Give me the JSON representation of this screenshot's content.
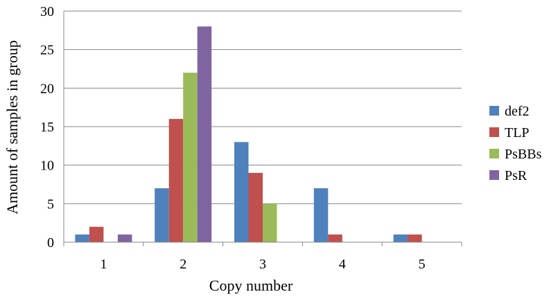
{
  "chart_data": {
    "type": "bar",
    "title": "",
    "xlabel": "Copy number",
    "ylabel": "Amount of samples in group",
    "categories": [
      "1",
      "2",
      "3",
      "4",
      "5"
    ],
    "ylim": [
      0,
      30
    ],
    "yticks": [
      0,
      5,
      10,
      15,
      20,
      25,
      30
    ],
    "grid": true,
    "legend_position": "right",
    "series": [
      {
        "name": "def2",
        "color": "#4F81BD",
        "values": [
          1,
          7,
          13,
          7,
          1
        ]
      },
      {
        "name": "TLP",
        "color": "#C0504D",
        "values": [
          2,
          16,
          9,
          1,
          1
        ]
      },
      {
        "name": "PsBBs",
        "color": "#9BBB59",
        "values": [
          0,
          22,
          5,
          0,
          0
        ]
      },
      {
        "name": "PsR",
        "color": "#8064A2",
        "values": [
          1,
          28,
          0,
          0,
          0
        ]
      }
    ]
  }
}
